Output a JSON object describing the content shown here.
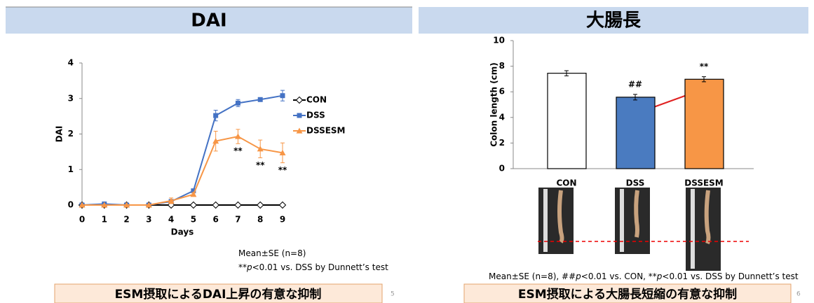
{
  "chart_data": [
    {
      "type": "line",
      "title": "DAI",
      "x_label": "Days",
      "y_label": "DAI",
      "x": [
        0,
        1,
        2,
        3,
        4,
        5,
        6,
        7,
        8,
        9
      ],
      "xlim": [
        0,
        9
      ],
      "xticks": [
        0,
        1,
        2,
        3,
        4,
        5,
        6,
        7,
        8,
        9
      ],
      "ylim": [
        0,
        4
      ],
      "yticks": [
        0,
        1,
        2,
        3,
        4
      ],
      "series": [
        {
          "name": "CON",
          "color": "#000000",
          "marker": "diamond",
          "values": [
            0,
            0,
            0,
            0,
            0,
            0,
            0,
            0,
            0,
            0
          ],
          "errors": [
            0,
            0,
            0,
            0,
            0,
            0,
            0,
            0,
            0,
            0
          ]
        },
        {
          "name": "DSS",
          "color": "#4472c4",
          "marker": "square",
          "values": [
            0,
            0.03,
            0,
            0,
            0.1,
            0.4,
            2.52,
            2.87,
            2.97,
            3.08
          ],
          "errors": [
            0,
            0.03,
            0,
            0,
            0.05,
            0.05,
            0.15,
            0.1,
            0.05,
            0.15
          ]
        },
        {
          "name": "DSSESM",
          "color": "#f79646",
          "marker": "triangle",
          "values": [
            0,
            0,
            0,
            0,
            0.12,
            0.3,
            1.8,
            1.93,
            1.58,
            1.47
          ],
          "errors": [
            0,
            0,
            0,
            0,
            0.08,
            0.05,
            0.28,
            0.2,
            0.25,
            0.28
          ],
          "significance": [
            null,
            null,
            null,
            null,
            null,
            null,
            null,
            "**",
            "**",
            "**"
          ]
        }
      ],
      "footnote": [
        [
          "Mean±SE (n=8)"
        ],
        [
          "**",
          "p",
          "<0.01 vs. DSS by Dunnett’s test"
        ]
      ],
      "caption": "ESM摂取によるDAI上昇の有意な抑制",
      "page": 5
    },
    {
      "type": "bar",
      "title": "大腸長",
      "y_label": "Colon length (cm)",
      "categories": [
        "CON",
        "DSS",
        "DSSESM"
      ],
      "values": [
        7.45,
        5.58,
        6.98
      ],
      "errors": [
        0.2,
        0.22,
        0.2
      ],
      "colors": [
        "#ffffff",
        "#4a7bc0",
        "#f79646"
      ],
      "significance": [
        null,
        "##",
        "**"
      ],
      "ylim": [
        0,
        10
      ],
      "yticks": [
        0,
        2,
        4,
        6,
        8,
        10
      ],
      "footnote": [
        [
          "Mean±SE (n=8), ##",
          "p",
          "<0.01 vs. CON, **",
          "p",
          "<0.01 vs. DSS by Dunnett’s test"
        ]
      ],
      "caption": "ESM摂取による大腸長短縮の有意な抑制",
      "page": 6
    }
  ]
}
